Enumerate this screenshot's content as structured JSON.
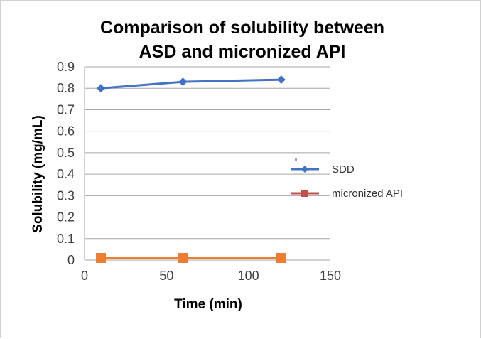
{
  "chart_data": {
    "type": "line",
    "title_lines": [
      "Comparison of solubility between",
      "ASD and micronized API"
    ],
    "xlabel": "Time (min)",
    "ylabel": "Solubility (mg/mL)",
    "xlim": [
      0,
      150
    ],
    "ylim": [
      0,
      0.9
    ],
    "x_ticks": [
      0,
      50,
      100,
      150
    ],
    "y_ticks": [
      0,
      0.1,
      0.2,
      0.3,
      0.4,
      0.5,
      0.6,
      0.7,
      0.8,
      0.9
    ],
    "y_tick_labels": [
      "0",
      "0.1",
      "0.2",
      "0.3",
      "0.4",
      "0.5",
      "0.6",
      "0.7",
      "0.8",
      "0.9"
    ],
    "grid": "horizontal",
    "legend": "right",
    "series": [
      {
        "name": "SDD",
        "x": [
          10,
          60,
          120
        ],
        "y": [
          0.8,
          0.83,
          0.84
        ],
        "color": "#4472C4",
        "marker": "diamond",
        "legend_color": "#4472C4"
      },
      {
        "name": "micronized API",
        "x": [
          10,
          60,
          120
        ],
        "y": [
          0.01,
          0.01,
          0.01
        ],
        "color": "#ED7D31",
        "marker": "square",
        "legend_color": "#C0504D"
      }
    ]
  }
}
